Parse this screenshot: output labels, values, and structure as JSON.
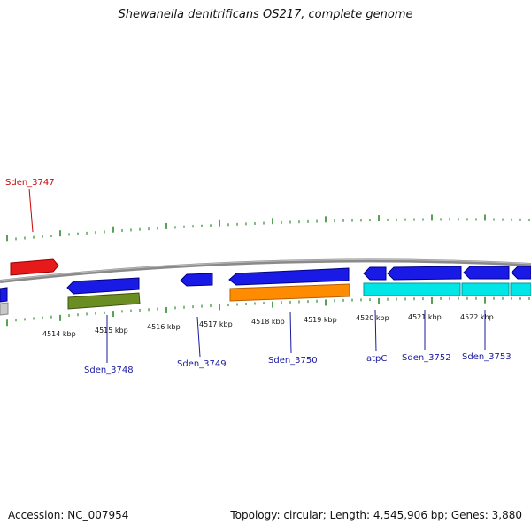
{
  "title": "Shewanella denitrificans OS217, complete genome",
  "footer": {
    "accession": "Accession: NC_007954",
    "summary": "Topology: circular; Length: 4,545,906 bp; Genes: 3,880"
  },
  "colors": {
    "backbone": "#8c8c8c",
    "tick": "#2e8b2e",
    "blue_gene": "#1a1ae6",
    "red_gene": "#e61a1a",
    "olive_gene": "#6b8e23",
    "orange_gene": "#ff8c00",
    "cyan_gene": "#00e6e6",
    "grey_gene": "#c8c8c8",
    "label_blue": "#1a1aa0",
    "label_red": "#cc0000"
  },
  "kbp_labels": [
    "4514 kbp",
    "4515 kbp",
    "4516 kbp",
    "4517 kbp",
    "4518 kbp",
    "4519 kbp",
    "4520 kbp",
    "4521 kbp",
    "4522 kbp"
  ],
  "gene_labels": [
    {
      "name": "Sden_3747",
      "color": "red"
    },
    {
      "name": "Sden_3748",
      "color": "blue"
    },
    {
      "name": "Sden_3749",
      "color": "blue"
    },
    {
      "name": "Sden_3750",
      "color": "blue"
    },
    {
      "name": "atpC",
      "color": "blue"
    },
    {
      "name": "Sden_3752",
      "color": "blue"
    },
    {
      "name": "Sden_3753",
      "color": "blue"
    }
  ]
}
